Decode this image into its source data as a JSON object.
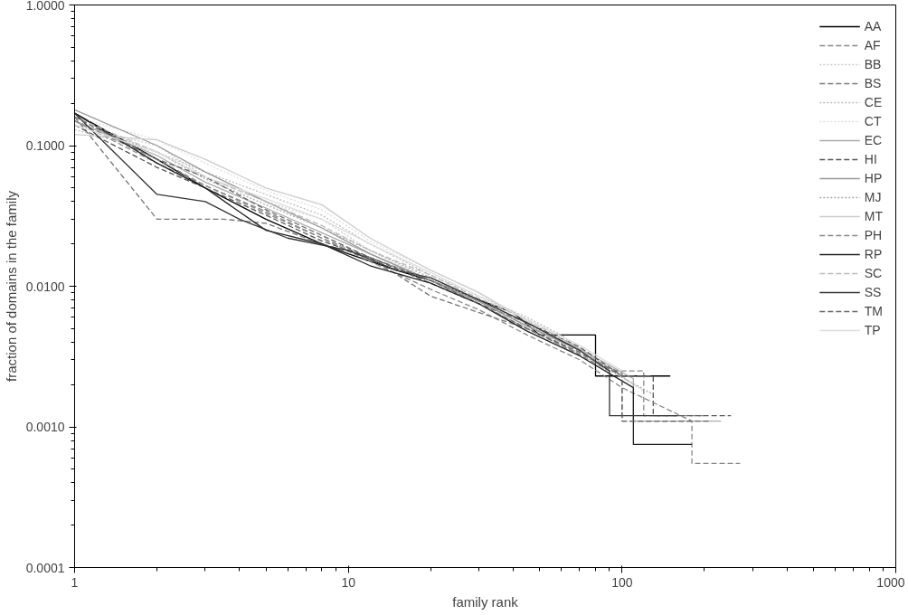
{
  "chart_data": {
    "type": "line",
    "xlabel": "family rank",
    "ylabel": "fraction of domains in the family",
    "log": "xy",
    "xlim": [
      1,
      1000
    ],
    "ylim": [
      0.0001,
      1
    ],
    "xticks": [
      1,
      10,
      100,
      1000
    ],
    "yticks": [
      {
        "value": 0.0001,
        "label": "0.0001"
      },
      {
        "value": 0.001,
        "label": "0.0010"
      },
      {
        "value": 0.01,
        "label": "0.0100"
      },
      {
        "value": 0.1,
        "label": "0.1000"
      },
      {
        "value": 1,
        "label": "1.0000"
      }
    ],
    "grid": false,
    "legend": "top right",
    "marker": "none",
    "series": [
      {
        "name": "AA",
        "color": "#000000",
        "line_style": "solid",
        "x": [
          1,
          2,
          3,
          5,
          8,
          10,
          15,
          20,
          30,
          40,
          50,
          70,
          80,
          80,
          150
        ],
        "values": [
          0.17,
          0.08,
          0.05,
          0.03,
          0.02,
          0.017,
          0.013,
          0.011,
          0.008,
          0.0065,
          0.0045,
          0.0045,
          0.0045,
          0.0023,
          0.0023
        ]
      },
      {
        "name": "AF",
        "color": "#888888",
        "line_style": "dashed",
        "x": [
          1,
          2,
          3,
          5,
          8,
          12,
          20,
          30,
          45,
          60,
          90,
          120,
          120,
          200
        ],
        "values": [
          0.15,
          0.075,
          0.052,
          0.033,
          0.022,
          0.016,
          0.011,
          0.0075,
          0.005,
          0.0038,
          0.0025,
          0.0025,
          0.0012,
          0.0012
        ]
      },
      {
        "name": "BB",
        "color": "#cccccc",
        "line_style": "dotted",
        "x": [
          1,
          2,
          3,
          5,
          8,
          12,
          20,
          30,
          45,
          70,
          120
        ],
        "values": [
          0.14,
          0.1,
          0.06,
          0.04,
          0.03,
          0.018,
          0.011,
          0.008,
          0.0055,
          0.0036,
          0.0018
        ]
      },
      {
        "name": "BS",
        "color": "#777777",
        "line_style": "dashed",
        "x": [
          1,
          2,
          3.5,
          5,
          8,
          12,
          20,
          30,
          45,
          70,
          100,
          100,
          180
        ],
        "values": [
          0.16,
          0.03,
          0.03,
          0.028,
          0.02,
          0.016,
          0.0085,
          0.0065,
          0.005,
          0.0033,
          0.0024,
          0.0011,
          0.0011
        ]
      },
      {
        "name": "CE",
        "color": "#bbbbbb",
        "line_style": "dotted",
        "x": [
          1,
          2,
          3,
          5,
          8,
          12,
          20,
          30,
          45,
          60,
          90
        ],
        "values": [
          0.13,
          0.09,
          0.065,
          0.045,
          0.032,
          0.02,
          0.012,
          0.0085,
          0.006,
          0.0045,
          0.0024
        ]
      },
      {
        "name": "CT",
        "color": "#dddddd",
        "line_style": "dotted",
        "x": [
          1,
          2,
          3,
          5,
          8,
          12,
          20,
          30,
          45,
          60
        ],
        "values": [
          0.16,
          0.11,
          0.075,
          0.048,
          0.035,
          0.021,
          0.013,
          0.009,
          0.0058,
          0.004
        ]
      },
      {
        "name": "EC",
        "color": "#aaaaaa",
        "line_style": "solid",
        "x": [
          1,
          2,
          3,
          5,
          8,
          12,
          20,
          30,
          45,
          70,
          110,
          110,
          230
        ],
        "values": [
          0.15,
          0.085,
          0.055,
          0.036,
          0.024,
          0.017,
          0.011,
          0.0078,
          0.0052,
          0.0036,
          0.0022,
          0.0011,
          0.0011
        ]
      },
      {
        "name": "HI",
        "color": "#555555",
        "line_style": "dashed",
        "x": [
          1,
          2,
          3,
          5,
          8,
          12,
          20,
          30,
          45,
          70,
          100,
          130,
          130,
          250
        ],
        "values": [
          0.14,
          0.07,
          0.05,
          0.032,
          0.021,
          0.016,
          0.0105,
          0.0075,
          0.0055,
          0.0037,
          0.0023,
          0.0023,
          0.0012,
          0.0012
        ]
      },
      {
        "name": "HP",
        "color": "#999999",
        "line_style": "solid",
        "x": [
          1,
          2,
          3,
          5,
          8,
          12,
          20,
          30,
          45,
          70
        ],
        "values": [
          0.18,
          0.1,
          0.065,
          0.04,
          0.026,
          0.017,
          0.011,
          0.0078,
          0.0052,
          0.0035
        ]
      },
      {
        "name": "MJ",
        "color": "#aaaaaa",
        "line_style": "dotted",
        "x": [
          1,
          2,
          3,
          5,
          8,
          12,
          20,
          30,
          45,
          70,
          130
        ],
        "values": [
          0.15,
          0.09,
          0.058,
          0.038,
          0.026,
          0.018,
          0.0115,
          0.008,
          0.0054,
          0.0033,
          0.0017
        ]
      },
      {
        "name": "MT",
        "color": "#cccccc",
        "line_style": "solid",
        "x": [
          1,
          2,
          3,
          5,
          8,
          12,
          20,
          30,
          50
        ],
        "values": [
          0.12,
          0.11,
          0.08,
          0.05,
          0.038,
          0.022,
          0.013,
          0.009,
          0.005
        ]
      },
      {
        "name": "PH",
        "color": "#888888",
        "line_style": "dashed",
        "x": [
          1,
          2,
          3,
          5,
          8,
          12,
          20,
          30,
          45,
          70,
          100,
          180,
          180,
          270
        ],
        "values": [
          0.15,
          0.08,
          0.052,
          0.034,
          0.022,
          0.015,
          0.0095,
          0.0068,
          0.0045,
          0.003,
          0.0019,
          0.0011,
          0.00055,
          0.00055
        ]
      },
      {
        "name": "RP",
        "color": "#222222",
        "line_style": "solid",
        "x": [
          1,
          2,
          3,
          5,
          8,
          12,
          20,
          30,
          45,
          70,
          110,
          110,
          180
        ],
        "values": [
          0.17,
          0.075,
          0.05,
          0.025,
          0.02,
          0.014,
          0.0105,
          0.0075,
          0.0048,
          0.0032,
          0.0019,
          0.00075,
          0.00075
        ]
      },
      {
        "name": "SC",
        "color": "#bbbbbb",
        "line_style": "dashed",
        "x": [
          1,
          2,
          3,
          5,
          8,
          12,
          20,
          30,
          45,
          70,
          110
        ],
        "values": [
          0.16,
          0.09,
          0.06,
          0.04,
          0.027,
          0.018,
          0.012,
          0.0082,
          0.0058,
          0.0036,
          0.002
        ]
      },
      {
        "name": "SS",
        "color": "#333333",
        "line_style": "solid",
        "x": [
          1,
          2,
          3,
          4,
          6,
          10,
          15,
          20,
          30,
          45,
          70,
          90,
          90,
          160
        ],
        "values": [
          0.17,
          0.045,
          0.04,
          0.03,
          0.022,
          0.018,
          0.013,
          0.0115,
          0.008,
          0.0055,
          0.0035,
          0.0025,
          0.0012,
          0.0012
        ]
      },
      {
        "name": "TM",
        "color": "#666666",
        "line_style": "dashed",
        "x": [
          1,
          2,
          3,
          5,
          8,
          12,
          20,
          30,
          45,
          70,
          100,
          100,
          210
        ],
        "values": [
          0.16,
          0.08,
          0.06,
          0.035,
          0.023,
          0.016,
          0.011,
          0.0075,
          0.005,
          0.0034,
          0.0023,
          0.0011,
          0.0011
        ]
      },
      {
        "name": "TP",
        "color": "#dddddd",
        "line_style": "solid",
        "x": [
          1,
          2,
          3,
          5,
          8,
          12,
          20,
          30,
          45,
          70,
          100
        ],
        "values": [
          0.14,
          0.09,
          0.06,
          0.042,
          0.03,
          0.02,
          0.0125,
          0.0085,
          0.0058,
          0.0038,
          0.0025
        ]
      }
    ]
  }
}
